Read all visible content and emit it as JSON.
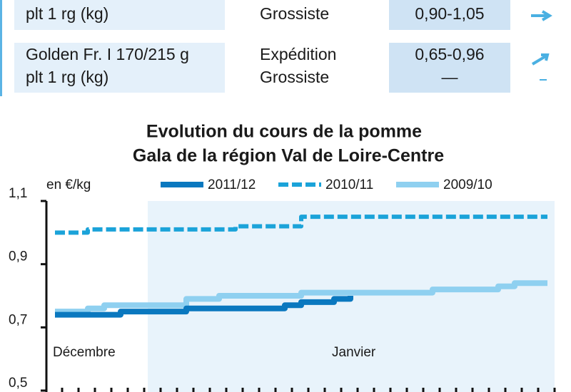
{
  "table": {
    "rows": [
      {
        "product": [
          "plt 1 rg (kg)"
        ],
        "market": [
          "Grossiste"
        ],
        "price": [
          "0,90-1,05"
        ]
      },
      {
        "product": [
          "Golden Fr. I 170/215 g",
          "plt 1 rg (kg)"
        ],
        "market": [
          "Expédition",
          "Grossiste"
        ],
        "price": [
          "0,65-0,96",
          "—"
        ]
      }
    ]
  },
  "chart_data": {
    "type": "line",
    "title": [
      "Evolution du cours de la pomme",
      "Gala de la région Val de Loire-Centre"
    ],
    "y_label": "en €/kg",
    "categories": [
      "Décembre",
      null,
      null,
      null,
      null,
      null,
      null,
      null,
      null,
      null,
      null,
      null,
      null,
      null,
      null,
      null,
      null,
      "Janvier",
      null,
      null,
      null,
      null,
      null,
      null,
      null,
      null,
      null,
      null,
      null,
      null,
      null
    ],
    "series": [
      {
        "name": "2011/12",
        "color": "#0a78bf",
        "style": "solid",
        "values": [
          0.74,
          0.74,
          0.74,
          0.74,
          0.75,
          0.75,
          0.75,
          0.75,
          0.76,
          0.76,
          0.76,
          0.76,
          0.76,
          0.76,
          0.77,
          0.78,
          0.78,
          0.79,
          0.8,
          null,
          null,
          null,
          null,
          null,
          null,
          null,
          null,
          null,
          null,
          null,
          null
        ]
      },
      {
        "name": "2010/11",
        "color": "#1ba3d9",
        "style": "dashed",
        "values": [
          1.0,
          1.0,
          1.01,
          1.01,
          1.01,
          1.01,
          1.01,
          1.01,
          1.01,
          1.01,
          1.01,
          1.02,
          1.02,
          1.02,
          1.02,
          1.05,
          1.05,
          1.05,
          1.05,
          1.05,
          1.05,
          1.05,
          1.05,
          1.05,
          1.05,
          1.05,
          1.05,
          1.05,
          1.05,
          1.05,
          1.05
        ]
      },
      {
        "name": "2009/10",
        "color": "#8fd0f0",
        "style": "solid",
        "values": [
          0.75,
          0.75,
          0.76,
          0.77,
          0.77,
          0.77,
          0.77,
          0.77,
          0.79,
          0.79,
          0.8,
          0.8,
          0.8,
          0.8,
          0.8,
          0.81,
          0.81,
          0.81,
          0.81,
          0.81,
          0.81,
          0.81,
          0.81,
          0.82,
          0.82,
          0.82,
          0.82,
          0.83,
          0.84,
          0.84,
          0.84
        ]
      }
    ],
    "ylim": [
      0.5,
      1.1
    ],
    "yticks": [
      {
        "value": 0.5,
        "label": "0,5"
      },
      {
        "value": 0.7,
        "label": "0,7"
      },
      {
        "value": 0.9,
        "label": "0,9"
      },
      {
        "value": 1.1,
        "label": "1,1"
      }
    ]
  }
}
